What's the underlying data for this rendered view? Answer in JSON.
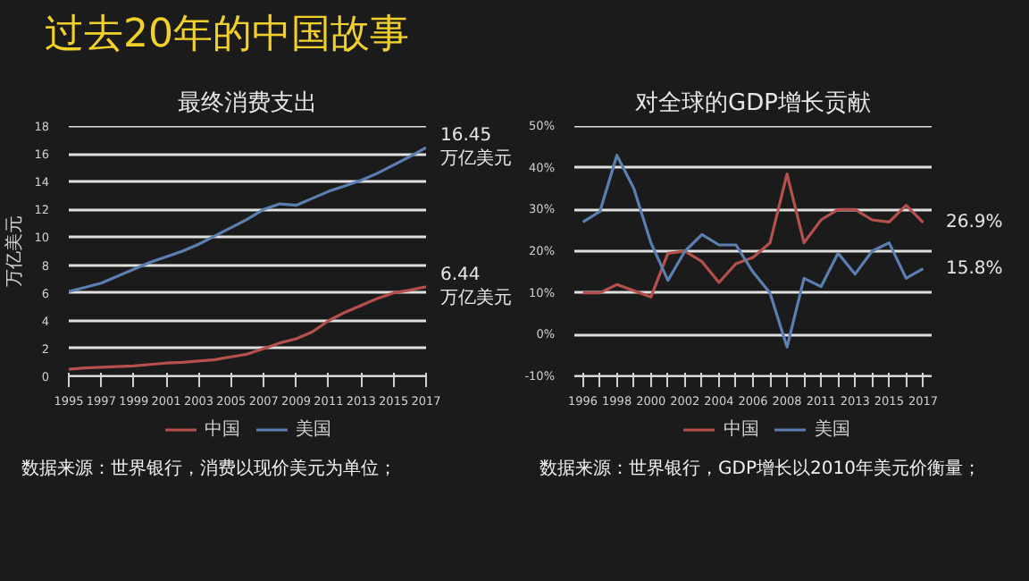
{
  "chart_data": [
    {
      "type": "line",
      "title": "最终消费支出",
      "ylabel": "万亿美元",
      "x": [
        1995,
        1996,
        1997,
        1998,
        1999,
        2000,
        2001,
        2002,
        2003,
        2004,
        2005,
        2006,
        2007,
        2008,
        2009,
        2010,
        2011,
        2012,
        2013,
        2014,
        2015,
        2016,
        2017
      ],
      "series": [
        {
          "name": "中国",
          "color": "#b5504c",
          "values": [
            0.5,
            0.6,
            0.65,
            0.7,
            0.75,
            0.85,
            0.95,
            1.0,
            1.1,
            1.2,
            1.4,
            1.6,
            2.0,
            2.4,
            2.7,
            3.2,
            4.0,
            4.6,
            5.1,
            5.6,
            6.0,
            6.2,
            6.44
          ]
        },
        {
          "name": "美国",
          "color": "#5a7fb0",
          "values": [
            6.1,
            6.4,
            6.7,
            7.2,
            7.7,
            8.2,
            8.6,
            9.0,
            9.5,
            10.1,
            10.7,
            11.3,
            12.0,
            12.4,
            12.3,
            12.8,
            13.3,
            13.7,
            14.1,
            14.6,
            15.2,
            15.8,
            16.45
          ]
        }
      ],
      "xlim": [
        1995,
        2017
      ],
      "xticks": [
        1995,
        1997,
        1999,
        2001,
        2003,
        2005,
        2007,
        2009,
        2011,
        2013,
        2015,
        2017
      ],
      "ylim": [
        0,
        18
      ],
      "yticks": [
        0,
        2,
        4,
        6,
        8,
        10,
        12,
        14,
        16,
        18
      ],
      "grid": "y",
      "legend": "bottom",
      "annotations": [
        "过去20年的中国故事",
        {
          "text": "16.45\n万亿美元",
          "x": 2017,
          "y": 16.45
        },
        {
          "text": "6.44\n万亿美元",
          "x": 2017,
          "y": 6.44
        },
        "数据来源：世界银行，消费以现价美元为单位；"
      ]
    },
    {
      "type": "line",
      "title": "对全球的GDP增长贡献",
      "categories": [
        "1996",
        null,
        "1998",
        null,
        "2000",
        null,
        "2002",
        null,
        "2004",
        null,
        "2006",
        null,
        "2008",
        null,
        "2011",
        null,
        "2013",
        null,
        "2015",
        null,
        "2017"
      ],
      "series": [
        {
          "name": "中国",
          "color": "#b5504c",
          "values": [
            10,
            10,
            12,
            10.5,
            9,
            19.5,
            20,
            17.5,
            12.5,
            17,
            18.5,
            22,
            38.5,
            22,
            27.5,
            30,
            30,
            27.5,
            27,
            31,
            26.9
          ]
        },
        {
          "name": "美国",
          "color": "#5a7fb0",
          "values": [
            27,
            29.5,
            43,
            35,
            22,
            13,
            20,
            24,
            21.5,
            21.5,
            15,
            10,
            -3,
            13.5,
            11.5,
            19.5,
            14.5,
            20,
            22,
            13.5,
            15.8
          ]
        }
      ],
      "ylim": [
        -10,
        50
      ],
      "yticks": [
        {
          "value": -10,
          "label": "-10%"
        },
        {
          "value": 0,
          "label": "0%"
        },
        {
          "value": 10,
          "label": "10%"
        },
        {
          "value": 20,
          "label": "20%"
        },
        {
          "value": 30,
          "label": "30%"
        },
        {
          "value": 40,
          "label": "40%"
        },
        {
          "value": 50,
          "label": "50%"
        }
      ],
      "grid": "y",
      "legend": "bottom",
      "annotations": [
        {
          "text": "26.9%",
          "x": "2017",
          "y": 26.9
        },
        {
          "text": "15.8%",
          "x": "2017",
          "y": 15.8
        },
        "数据来源：世界银行，GDP增长以2010年美元价衡量；"
      ]
    }
  ]
}
